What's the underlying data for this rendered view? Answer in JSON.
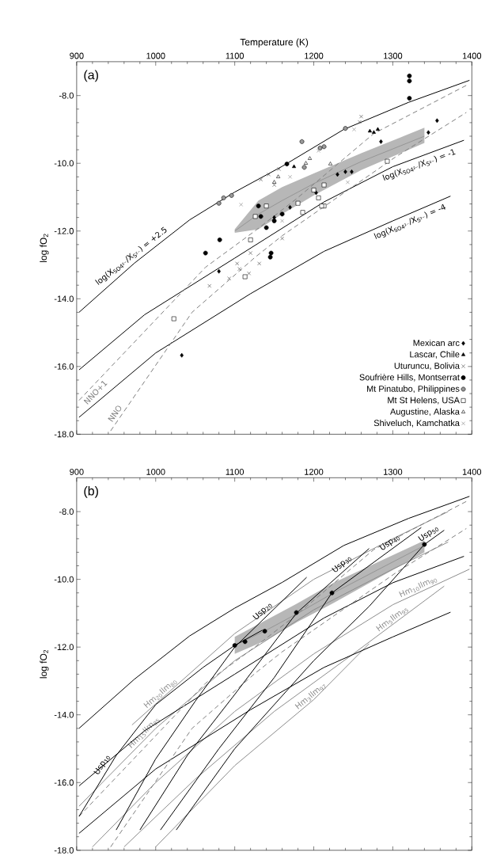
{
  "chart_data": [
    {
      "type": "line",
      "xlabel": "Temperature (K)",
      "ylabel": "log fO$_{2}$",
      "xlim": [
        900,
        1400
      ],
      "ylim": [
        -18,
        -7
      ],
      "xticks": [
        900,
        1000,
        1100,
        1200,
        1300,
        1400
      ],
      "yticks": [
        {
          "value": -8,
          "label": "-8.0"
        },
        {
          "value": -10,
          "label": "-10.0"
        },
        {
          "value": -12,
          "label": "-12.0"
        },
        {
          "value": -14,
          "label": "-14.0"
        },
        {
          "value": -16,
          "label": "-16.0"
        },
        {
          "value": -18,
          "label": "-18.0"
        }
      ],
      "legend": "bottom right",
      "series": [
        {
          "color": "#7d7d7d",
          "x": [
            1100,
            1130,
            1160,
            1200,
            1260,
            1340
          ],
          "values": [
            -12.0,
            -11.5,
            -11.1,
            -10.6,
            -9.95,
            -9.2
          ],
          "lower": [
            -12.05,
            -11.95,
            -11.5,
            -10.95,
            -10.2,
            -9.4
          ],
          "upper": [
            -11.95,
            -11.1,
            -10.7,
            -10.3,
            -9.7,
            -8.95
          ]
        },
        {
          "name": "log(X$_{SO4²⁻}$/X$_{S²⁻}$) = +2.5",
          "color": "#000000",
          "x": [
            903,
            973,
            1043,
            1100,
            1160,
            1238,
            1320,
            1397
          ],
          "values": [
            -14.4,
            -12.95,
            -11.67,
            -10.85,
            -10.09,
            -9.0,
            -8.2,
            -7.55
          ]
        },
        {
          "name": "log(X$_{SO4²⁻}$/X$_{S²⁻}$) = -1",
          "color": "#000000",
          "x": [
            903,
            986,
            1100,
            1213,
            1300,
            1390
          ],
          "values": [
            -16.1,
            -14.47,
            -12.8,
            -11.14,
            -10.1,
            -9.32
          ]
        },
        {
          "name": "log(X$_{SO4²⁻}$/X$_{S²⁻}$) = -4",
          "color": "#000000",
          "x": [
            903,
            1000,
            1120,
            1213,
            1300,
            1373
          ],
          "values": [
            -17.5,
            -15.6,
            -13.85,
            -12.6,
            -11.7,
            -10.97
          ]
        },
        {
          "name": "NNO+1",
          "color": "#808080",
          "line_style": "dashed",
          "x": [
            903,
            1063,
            1126,
            1178,
            1276,
            1393
          ],
          "values": [
            -17.0,
            -13.07,
            -11.99,
            -11.05,
            -9.12,
            -7.7
          ]
        },
        {
          "name": "NNO",
          "color": "#808080",
          "line_style": "dashed",
          "x": [
            943,
            1046,
            1126,
            1160,
            1303,
            1393
          ],
          "values": [
            -17.9,
            -14.4,
            -12.77,
            -12.14,
            -9.82,
            -8.5
          ]
        },
        {
          "type": "scatter",
          "name": "Mexican arc",
          "marker": "diamond",
          "color": "#000000",
          "x": [
            1356,
            1345,
            1285,
            1240,
            1230,
            1248,
            1203,
            1033,
            1080,
            1150,
            1170
          ],
          "values": [
            -8.74,
            -9.09,
            -9.36,
            -10.25,
            -10.33,
            -10.25,
            -10.87,
            -15.67,
            -13.19,
            -11.6,
            -11.3
          ]
        },
        {
          "type": "scatter",
          "name": "Lascar, Chile",
          "marker": "triangle",
          "color": "#000000",
          "x": [
            1271,
            1276,
            1281,
            1175
          ],
          "values": [
            -9.05,
            -9.09,
            -9.0,
            -10.1
          ]
        },
        {
          "type": "scatter",
          "name": "Uturuncu, Bolivia",
          "marker": "cross",
          "color": "#404040",
          "x": [
            1260,
            1258,
            1133,
            1143,
            1156,
            1150,
            1068,
            1103,
            1106,
            1131,
            1120,
            1160,
            1093,
            1118
          ],
          "values": [
            -8.62,
            -8.78,
            -10.48,
            -10.33,
            -10.17,
            -10.64,
            -13.62,
            -12.96,
            -13.12,
            -12.96,
            -12.65,
            -12.22,
            -13.4,
            -13.25
          ]
        },
        {
          "type": "scatter",
          "name": "Soufrière Hills, Montserrat",
          "marker": "circle",
          "color": "#000000",
          "x": [
            1321,
            1321,
            1321,
            1166,
            1130,
            1133,
            1081,
            1063,
            1146,
            1145,
            1140,
            1150,
            1160
          ],
          "values": [
            -7.42,
            -7.57,
            -8.08,
            -10.02,
            -11.26,
            -11.57,
            -12.26,
            -12.65,
            -12.65,
            -12.77,
            -11.9,
            -11.7,
            -11.5
          ]
        },
        {
          "type": "scatter",
          "name": "Mt Pinatubo, Philippines",
          "marker": "circle",
          "color": "#999999",
          "x": [
            1185,
            1240,
            1213,
            1208,
            1188,
            1086,
            1096,
            1080
          ],
          "values": [
            -9.36,
            -8.97,
            -9.51,
            -9.55,
            -10.12,
            -11.02,
            -10.95,
            -11.18
          ]
        },
        {
          "type": "scatter",
          "name": "Mt St Helens, USA",
          "marker": "square",
          "color": "#ffffff",
          "x": [
            1293,
            1213,
            1206,
            1213,
            1200,
            1180,
            1140,
            1023,
            1113,
            1120,
            1126,
            1186,
            1210
          ],
          "values": [
            -9.94,
            -10.64,
            -11.02,
            -11.26,
            -10.79,
            -11.18,
            -11.26,
            -14.59,
            -13.35,
            -12.26,
            -11.57,
            -11.45,
            -11.26
          ]
        },
        {
          "type": "scatter",
          "name": "Augustine, Alaska",
          "marker": "triangle",
          "color": "#ffffff",
          "x": [
            1221,
            1155,
            1150,
            1195,
            1190
          ],
          "values": [
            -10.02,
            -10.4,
            -10.56,
            -9.86,
            -10.0
          ]
        },
        {
          "type": "scatter",
          "name": "Shiveluch, Kamchatka",
          "marker": "cross",
          "color": "#808080",
          "x": [
            1108,
            1251,
            1206,
            1243,
            1170,
            1160
          ],
          "values": [
            -11.22,
            -9.0,
            -9.63,
            -10.56,
            -10.4,
            -11.7
          ]
        }
      ],
      "annotations": [
        "(a)"
      ]
    },
    {
      "type": "line",
      "ylabel": "log fO$_{2}$",
      "xlim": [
        900,
        1400
      ],
      "ylim": [
        -18,
        -7
      ],
      "xticks": [
        900,
        1000,
        1100,
        1200,
        1300,
        1400
      ],
      "yticks": [
        {
          "value": -8,
          "label": "-8.0"
        },
        {
          "value": -10,
          "label": "-10.0"
        },
        {
          "value": -12,
          "label": "-12.0"
        },
        {
          "value": -14,
          "label": "-14.0"
        },
        {
          "value": -16,
          "label": "-16.0"
        },
        {
          "value": -18,
          "label": "-18.0"
        }
      ],
      "series": [
        {
          "color": "#7d7d7d",
          "x": [
            1100,
            1140,
            1180,
            1225,
            1340
          ],
          "values": [
            -11.95,
            -11.5,
            -11.0,
            -10.4,
            -9.0
          ],
          "lower": [
            -12.2,
            -11.8,
            -11.25,
            -10.7,
            -9.2
          ],
          "upper": [
            -11.7,
            -11.2,
            -10.7,
            -10.1,
            -8.85
          ]
        },
        {
          "name": "Hm$_{20}$Ilm$_{80}$",
          "color": "#8c8c8c",
          "x": [
            970,
            1100,
            1200,
            1300,
            1370
          ],
          "values": [
            -14.3,
            -11.6,
            -10.0,
            -8.8,
            -8.0
          ]
        },
        {
          "name": "Hm$_{15}$Ilm$_{85}$",
          "color": "#8c8c8c",
          "x": [
            903,
            1000,
            1100,
            1200,
            1300,
            1370
          ],
          "values": [
            -16.7,
            -14.4,
            -12.4,
            -10.9,
            -9.7,
            -8.9
          ]
        },
        {
          "name": "Hm$_{10}$Ilm$_{90}$",
          "color": "#8c8c8c",
          "x": [
            920,
            1000,
            1100,
            1200,
            1300,
            1397
          ],
          "values": [
            -17.9,
            -16.0,
            -13.9,
            -12.2,
            -10.75,
            -9.7
          ]
        },
        {
          "name": "Hm$_{5}$Ilm$_{95}$",
          "color": "#8c8c8c",
          "x": [
            960,
            1050,
            1150,
            1250,
            1365
          ],
          "values": [
            -17.9,
            -15.9,
            -13.9,
            -12.2,
            -10.2
          ]
        },
        {
          "name": "Hm$_{3}$Ilm$_{97}$",
          "color": "#8c8c8c",
          "x": [
            1000,
            1100,
            1200,
            1270
          ],
          "values": [
            -17.9,
            -15.5,
            -13.55,
            -11.9
          ]
        },
        {
          "color": "#000000",
          "x": [
            903,
            973,
            1043,
            1100,
            1160,
            1238,
            1320,
            1397
          ],
          "values": [
            -14.4,
            -12.95,
            -11.67,
            -10.85,
            -10.09,
            -9.0,
            -8.2,
            -7.55
          ]
        },
        {
          "color": "#000000",
          "x": [
            903,
            986,
            1100,
            1213,
            1300,
            1390
          ],
          "values": [
            -16.1,
            -14.47,
            -12.8,
            -11.14,
            -10.1,
            -9.32
          ]
        },
        {
          "color": "#000000",
          "x": [
            903,
            1000,
            1120,
            1213,
            1300,
            1373
          ],
          "values": [
            -17.5,
            -15.6,
            -13.85,
            -12.6,
            -11.7,
            -10.97
          ]
        },
        {
          "color": "#808080",
          "line_style": "dashed",
          "x": [
            903,
            1063,
            1126,
            1178,
            1276,
            1393
          ],
          "values": [
            -17.0,
            -13.07,
            -11.99,
            -11.05,
            -9.12,
            -7.7
          ]
        },
        {
          "color": "#808080",
          "line_style": "dashed",
          "x": [
            943,
            1046,
            1126,
            1160,
            1303,
            1393
          ],
          "values": [
            -17.9,
            -14.4,
            -12.77,
            -12.14,
            -9.82,
            -8.5
          ]
        },
        {
          "name": "Usp$_{10}$",
          "color": "#000000",
          "x": [
            903,
            950,
            1000,
            1060,
            1100,
            1135
          ],
          "values": [
            -17.0,
            -15.2,
            -13.7,
            -12.6,
            -11.95,
            -11.5
          ]
        },
        {
          "name": "Usp$_{20}$",
          "color": "#000000",
          "x": [
            950,
            1000,
            1050,
            1100,
            1191
          ],
          "values": [
            -17.4,
            -15.3,
            -13.6,
            -12.0,
            -9.94
          ]
        },
        {
          "name": "Usp$_{30}$",
          "color": "#000000",
          "x": [
            980,
            1040,
            1100,
            1178,
            1270
          ],
          "values": [
            -17.4,
            -15.2,
            -13.4,
            -11.0,
            -9.09
          ]
        },
        {
          "name": "Usp$_{40}$",
          "color": "#000000",
          "x": [
            1006,
            1080,
            1150,
            1223,
            1336
          ],
          "values": [
            -17.4,
            -15.0,
            -12.9,
            -10.4,
            -8.47
          ]
        },
        {
          "name": "Usp$_{50}$",
          "color": "#000000",
          "x": [
            1026,
            1100,
            1200,
            1270,
            1340,
            1365
          ],
          "values": [
            -17.4,
            -15.0,
            -12.4,
            -10.8,
            -8.97,
            -8.55
          ]
        },
        {
          "type": "scatter",
          "marker": "circle",
          "color": "#000000",
          "x": [
            1100,
            1113,
            1138,
            1178,
            1223,
            1340
          ],
          "values": [
            -11.95,
            -11.84,
            -11.53,
            -10.98,
            -10.4,
            -8.97
          ]
        }
      ],
      "annotations": [
        "(b)"
      ]
    }
  ]
}
